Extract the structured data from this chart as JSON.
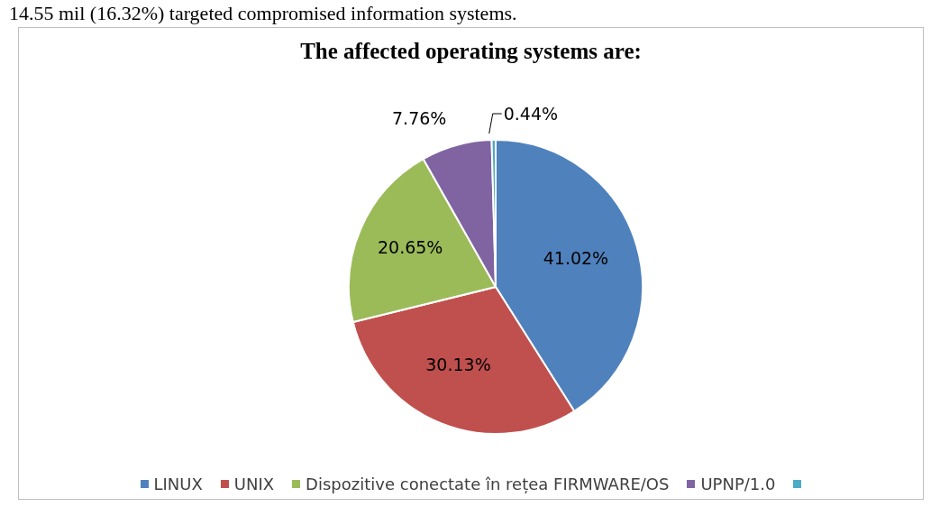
{
  "chart_data": {
    "type": "pie",
    "title": "The affected operating systems are:",
    "annotations": [
      "14.55 mil (16.32%) targeted compromised information systems."
    ],
    "categories": [
      "LINUX",
      "UNIX",
      "Dispozitive conectate în rețea FIRMWARE/OS",
      "UPNP/1.0",
      null
    ],
    "values": [
      41.02,
      30.13,
      20.65,
      7.76,
      0.44
    ],
    "value_labels": [
      "41.02%",
      "30.13%",
      "20.65%",
      "7.76%",
      "0.44%"
    ],
    "colors": [
      "#4f81bd",
      "#c0504d",
      "#9bbb59",
      "#8064a2",
      "#4bacc6"
    ],
    "legend": "bottom"
  }
}
